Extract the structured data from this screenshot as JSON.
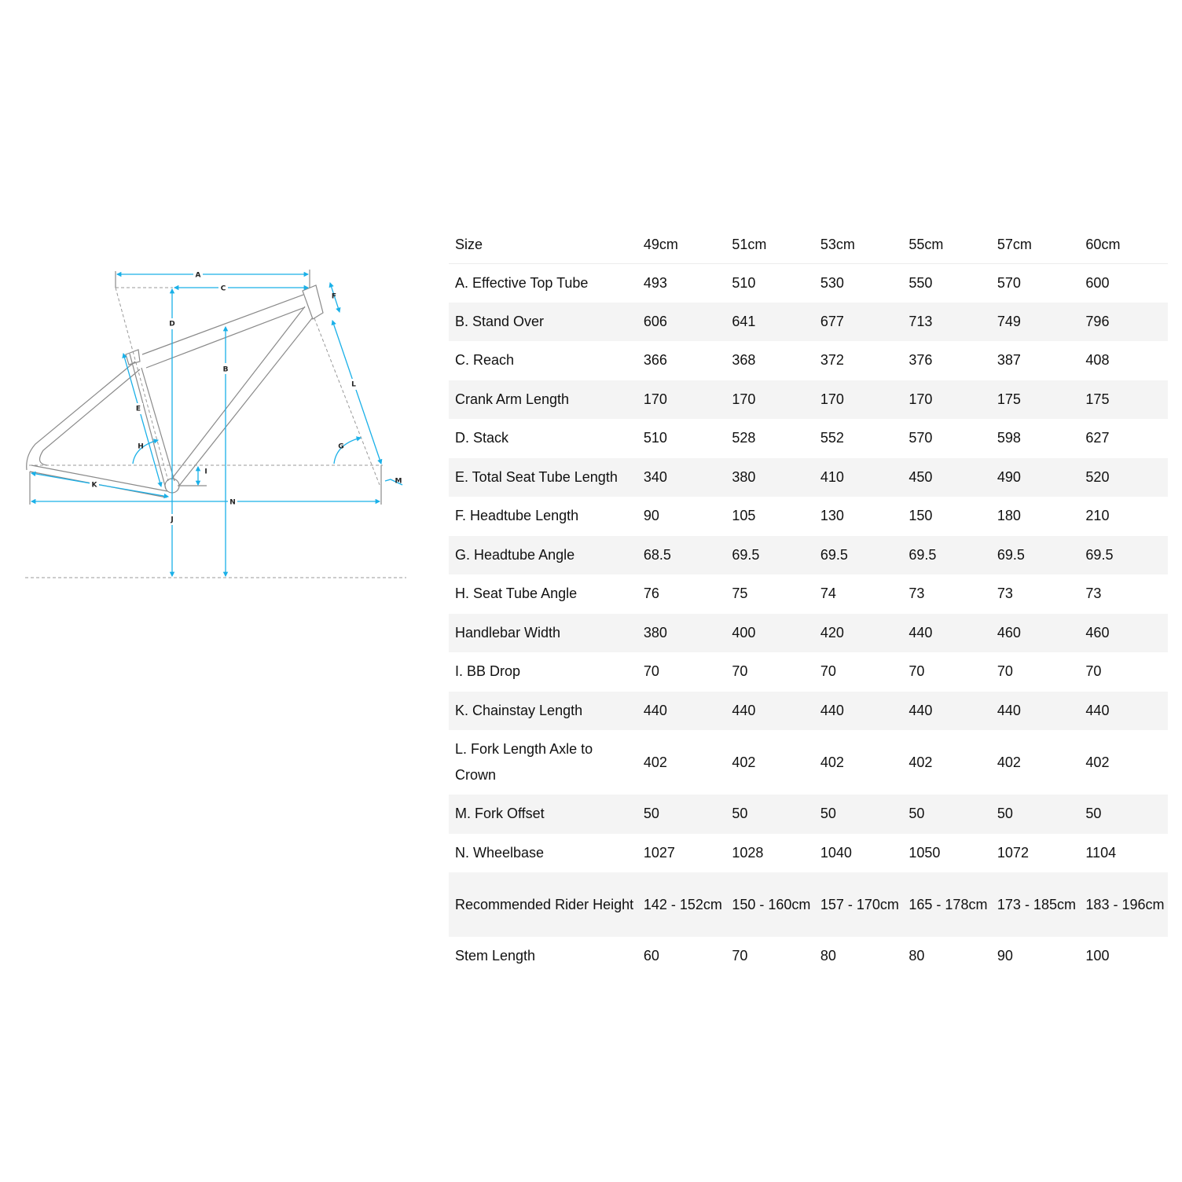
{
  "diagram": {
    "labels": [
      "A",
      "B",
      "C",
      "D",
      "E",
      "F",
      "G",
      "H",
      "I",
      "J",
      "K",
      "L",
      "M",
      "N"
    ],
    "colors": {
      "dimension": "#1ab0e8",
      "frame": "#8a8a8a",
      "guide": "#999999"
    }
  },
  "table": {
    "header": {
      "label": "Size",
      "sizes": [
        "49cm",
        "51cm",
        "53cm",
        "55cm",
        "57cm",
        "60cm"
      ]
    },
    "rows": [
      {
        "label": "A. Effective Top Tube",
        "values": [
          "493",
          "510",
          "530",
          "550",
          "570",
          "600"
        ]
      },
      {
        "label": "B. Stand Over",
        "values": [
          "606",
          "641",
          "677",
          "713",
          "749",
          "796"
        ]
      },
      {
        "label": "C. Reach",
        "values": [
          "366",
          "368",
          "372",
          "376",
          "387",
          "408"
        ]
      },
      {
        "label": "Crank Arm Length",
        "values": [
          "170",
          "170",
          "170",
          "170",
          "175",
          "175"
        ]
      },
      {
        "label": "D. Stack",
        "values": [
          "510",
          "528",
          "552",
          "570",
          "598",
          "627"
        ]
      },
      {
        "label": "E. Total Seat Tube Length",
        "values": [
          "340",
          "380",
          "410",
          "450",
          "490",
          "520"
        ]
      },
      {
        "label": "F. Headtube Length",
        "values": [
          "90",
          "105",
          "130",
          "150",
          "180",
          "210"
        ]
      },
      {
        "label": "G. Headtube Angle",
        "values": [
          "68.5",
          "69.5",
          "69.5",
          "69.5",
          "69.5",
          "69.5"
        ]
      },
      {
        "label": "H. Seat Tube Angle",
        "values": [
          "76",
          "75",
          "74",
          "73",
          "73",
          "73"
        ]
      },
      {
        "label": "Handlebar Width",
        "values": [
          "380",
          "400",
          "420",
          "440",
          "460",
          "460"
        ]
      },
      {
        "label": "I. BB Drop",
        "values": [
          "70",
          "70",
          "70",
          "70",
          "70",
          "70"
        ]
      },
      {
        "label": "K. Chainstay Length",
        "values": [
          "440",
          "440",
          "440",
          "440",
          "440",
          "440"
        ]
      },
      {
        "label": "L. Fork Length Axle to Crown",
        "values": [
          "402",
          "402",
          "402",
          "402",
          "402",
          "402"
        ]
      },
      {
        "label": "M. Fork Offset",
        "values": [
          "50",
          "50",
          "50",
          "50",
          "50",
          "50"
        ]
      },
      {
        "label": "N. Wheelbase",
        "values": [
          "1027",
          "1028",
          "1040",
          "1050",
          "1072",
          "1104"
        ]
      },
      {
        "label": "Recommended Rider Height",
        "values": [
          "142 - 152cm",
          "150 - 160cm",
          "157 - 170cm",
          "165 - 178cm",
          "173 - 185cm",
          "183 - 196cm"
        ]
      },
      {
        "label": "Stem Length",
        "values": [
          "60",
          "70",
          "80",
          "80",
          "90",
          "100"
        ]
      }
    ]
  }
}
